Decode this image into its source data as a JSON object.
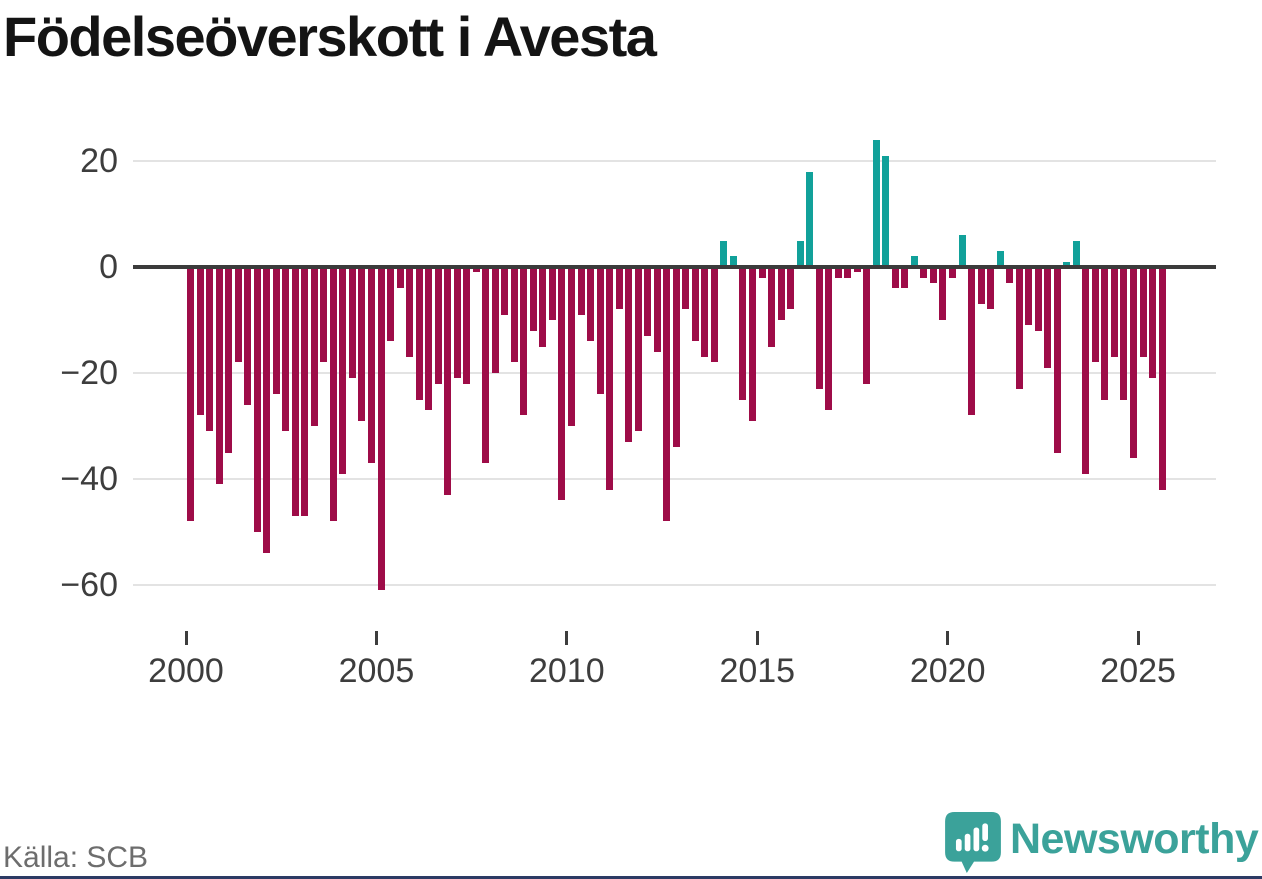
{
  "title": "Födelseöverskott i Avesta",
  "source": "Källa: SCB",
  "logo": {
    "text": "Newsworthy",
    "icon": "newsworthy-speech-bubble-chart-icon"
  },
  "colors": {
    "negative_bar": "#9e0c48",
    "positive_bar": "#11a19a",
    "zero_line": "#3b3b3b",
    "gridline": "#e3e3e3",
    "axis_text": "#3d3d3d",
    "title_text": "#141414",
    "source_text": "#6d6d6d",
    "logo_teal": "#3ba29a",
    "bottom_border": "#2c3a64"
  },
  "chart_data": {
    "type": "bar",
    "title": "Födelseöverskott i Avesta",
    "frequency": "quarterly",
    "start_period": "2000 Q1",
    "end_period": "2025 Q3",
    "x_tick_years": [
      2000,
      2005,
      2010,
      2015,
      2020,
      2025
    ],
    "y_ticks": [
      20,
      0,
      -20,
      -40,
      -60
    ],
    "ylim": [
      -65,
      26
    ],
    "grid": true,
    "legend": "none",
    "colors": {
      "positive": "#11a19a",
      "negative": "#9e0c48"
    },
    "values": [
      -48,
      -28,
      -31,
      -41,
      -35,
      -18,
      -26,
      -50,
      -54,
      -24,
      -31,
      -47,
      -47,
      -30,
      -18,
      -48,
      -39,
      -21,
      -29,
      -37,
      -61,
      -14,
      -4,
      -17,
      -25,
      -27,
      -22,
      -43,
      -21,
      -22,
      -1,
      -37,
      -20,
      -9,
      -18,
      -28,
      -12,
      -15,
      -10,
      -44,
      -30,
      -9,
      -14,
      -24,
      -42,
      -8,
      -33,
      -31,
      -13,
      -16,
      -48,
      -34,
      -8,
      -14,
      -17,
      -18,
      5,
      2,
      -25,
      -29,
      -2,
      -15,
      -10,
      -8,
      5,
      18,
      -23,
      -27,
      -2,
      -2,
      -1,
      -22,
      24,
      21,
      -4,
      -4,
      2,
      -2,
      -3,
      -10,
      -2,
      6,
      -28,
      -7,
      -8,
      3,
      -3,
      -23,
      -11,
      -12,
      -19,
      -35,
      1,
      5,
      -39,
      -18,
      -25,
      -17,
      -25,
      -36,
      -17,
      -21,
      -42
    ]
  }
}
